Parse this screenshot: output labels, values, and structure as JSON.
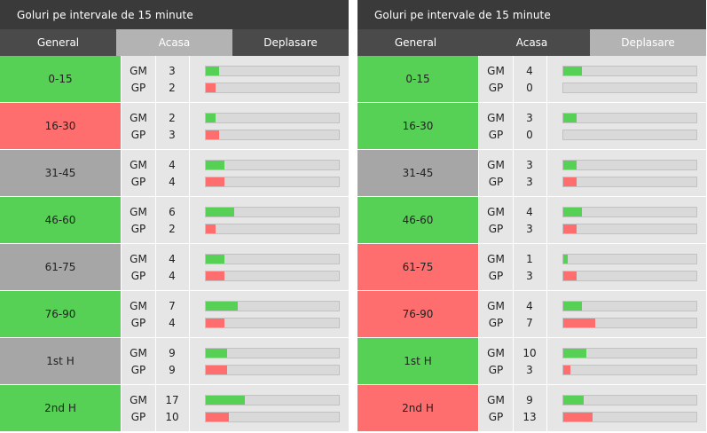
{
  "panels": [
    {
      "title": "Goluri pe intervale de 15 minute",
      "tabs": [
        {
          "label": "General",
          "active": false
        },
        {
          "label": "Acasa",
          "active": true
        },
        {
          "label": "Deplasare",
          "active": false
        }
      ],
      "rows": [
        {
          "period": "0-15",
          "status": "green",
          "gm_label": "GM",
          "gp_label": "GP",
          "gm": "3",
          "gp": "2",
          "gm_fill_pct": 10,
          "gp_fill_pct": 7
        },
        {
          "period": "16-30",
          "status": "red",
          "gm_label": "GM",
          "gp_label": "GP",
          "gm": "2",
          "gp": "3",
          "gm_fill_pct": 7,
          "gp_fill_pct": 10
        },
        {
          "period": "31-45",
          "status": "gray",
          "gm_label": "GM",
          "gp_label": "GP",
          "gm": "4",
          "gp": "4",
          "gm_fill_pct": 14,
          "gp_fill_pct": 14
        },
        {
          "period": "46-60",
          "status": "green",
          "gm_label": "GM",
          "gp_label": "GP",
          "gm": "6",
          "gp": "2",
          "gm_fill_pct": 21,
          "gp_fill_pct": 7
        },
        {
          "period": "61-75",
          "status": "gray",
          "gm_label": "GM",
          "gp_label": "GP",
          "gm": "4",
          "gp": "4",
          "gm_fill_pct": 14,
          "gp_fill_pct": 14
        },
        {
          "period": "76-90",
          "status": "green",
          "gm_label": "GM",
          "gp_label": "GP",
          "gm": "7",
          "gp": "4",
          "gm_fill_pct": 24,
          "gp_fill_pct": 14
        },
        {
          "period": "1st H",
          "status": "gray",
          "gm_label": "GM",
          "gp_label": "GP",
          "gm": "9",
          "gp": "9",
          "gm_fill_pct": 16,
          "gp_fill_pct": 16
        },
        {
          "period": "2nd H",
          "status": "green",
          "gm_label": "GM",
          "gp_label": "GP",
          "gm": "17",
          "gp": "10",
          "gm_fill_pct": 29,
          "gp_fill_pct": 17
        }
      ]
    },
    {
      "title": "Goluri pe intervale de 15 minute",
      "tabs": [
        {
          "label": "General",
          "active": false
        },
        {
          "label": "Acasa",
          "active": false
        },
        {
          "label": "Deplasare",
          "active": true
        }
      ],
      "rows": [
        {
          "period": "0-15",
          "status": "green",
          "gm_label": "GM",
          "gp_label": "GP",
          "gm": "4",
          "gp": "0",
          "gm_fill_pct": 14,
          "gp_fill_pct": 0
        },
        {
          "period": "16-30",
          "status": "green",
          "gm_label": "GM",
          "gp_label": "GP",
          "gm": "3",
          "gp": "0",
          "gm_fill_pct": 10,
          "gp_fill_pct": 0
        },
        {
          "period": "31-45",
          "status": "gray",
          "gm_label": "GM",
          "gp_label": "GP",
          "gm": "3",
          "gp": "3",
          "gm_fill_pct": 10,
          "gp_fill_pct": 10
        },
        {
          "period": "46-60",
          "status": "green",
          "gm_label": "GM",
          "gp_label": "GP",
          "gm": "4",
          "gp": "3",
          "gm_fill_pct": 14,
          "gp_fill_pct": 10
        },
        {
          "period": "61-75",
          "status": "red",
          "gm_label": "GM",
          "gp_label": "GP",
          "gm": "1",
          "gp": "3",
          "gm_fill_pct": 3,
          "gp_fill_pct": 10
        },
        {
          "period": "76-90",
          "status": "red",
          "gm_label": "GM",
          "gp_label": "GP",
          "gm": "4",
          "gp": "7",
          "gm_fill_pct": 14,
          "gp_fill_pct": 24
        },
        {
          "period": "1st H",
          "status": "green",
          "gm_label": "GM",
          "gp_label": "GP",
          "gm": "10",
          "gp": "3",
          "gm_fill_pct": 17,
          "gp_fill_pct": 5
        },
        {
          "period": "2nd H",
          "status": "red",
          "gm_label": "GM",
          "gp_label": "GP",
          "gm": "9",
          "gp": "13",
          "gm_fill_pct": 15,
          "gp_fill_pct": 22
        }
      ]
    }
  ]
}
